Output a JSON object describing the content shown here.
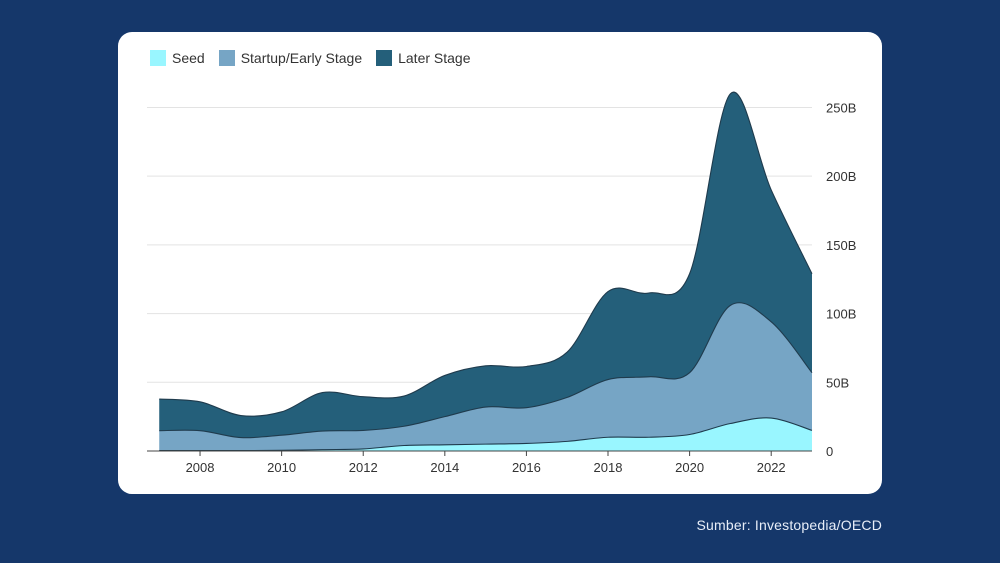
{
  "source_text": "Sumber: Investopedia/OECD",
  "chart_data": {
    "type": "area",
    "stacked": true,
    "x": [
      2007,
      2008,
      2009,
      2010,
      2011,
      2012,
      2013,
      2014,
      2015,
      2016,
      2017,
      2018,
      2019,
      2020,
      2021,
      2022,
      2023
    ],
    "series": [
      {
        "name": "Seed",
        "color": "#99f6ff",
        "values": [
          0.3,
          0.3,
          0.3,
          0.5,
          1,
          1.5,
          4,
          4.5,
          5,
          5.5,
          7,
          10,
          10,
          12,
          20,
          24,
          15
        ]
      },
      {
        "name": "Startup/Early Stage",
        "color": "#76a5c5",
        "values": [
          14.5,
          14.5,
          9.5,
          11,
          13.5,
          13.5,
          14,
          20.5,
          27,
          26,
          32,
          42,
          44,
          45,
          86,
          70,
          42
        ]
      },
      {
        "name": "Later Stage",
        "color": "#245f7a",
        "values": [
          23,
          21,
          16,
          17,
          28,
          24.5,
          22,
          30,
          30,
          30,
          33,
          64,
          61,
          72,
          154,
          96,
          72
        ]
      }
    ],
    "xlabel": "",
    "ylabel": "",
    "xticks": [
      "2008",
      "2010",
      "2012",
      "2014",
      "2016",
      "2018",
      "2020",
      "2022"
    ],
    "xtick_values": [
      2008,
      2010,
      2012,
      2014,
      2016,
      2018,
      2020,
      2022
    ],
    "yticks": [
      "0",
      "50B",
      "100B",
      "150B",
      "200B",
      "250B"
    ],
    "ytick_values": [
      0,
      50,
      100,
      150,
      200,
      250
    ],
    "ylim": [
      0,
      270
    ],
    "xlim": [
      2006.7,
      2023
    ],
    "grid": true,
    "legend_position": "top-left",
    "y_axis_side": "right"
  }
}
